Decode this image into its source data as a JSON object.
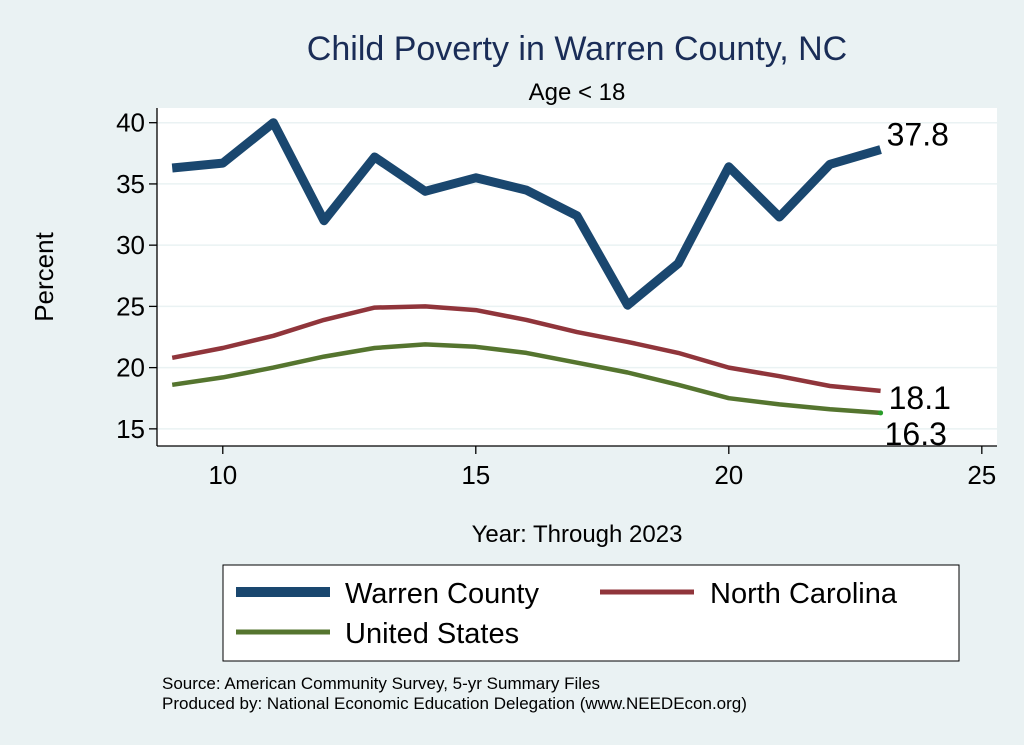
{
  "chart_data": {
    "type": "line",
    "title": "Child Poverty in Warren County, NC",
    "subtitle": "Age < 18",
    "xlabel": "Year: Through 2023",
    "ylabel": "Percent",
    "xlim": [
      8.7,
      25.3
    ],
    "ylim": [
      13.6,
      41.2
    ],
    "xticks": [
      10,
      15,
      20,
      25
    ],
    "yticks": [
      15,
      20,
      25,
      30,
      35,
      40
    ],
    "x": [
      9,
      10,
      11,
      12,
      13,
      14,
      15,
      16,
      17,
      18,
      19,
      20,
      21,
      22,
      23
    ],
    "series": [
      {
        "name": "Warren County",
        "color": "#1a476f",
        "values": [
          36.3,
          36.7,
          40.0,
          32.0,
          37.2,
          34.4,
          35.5,
          34.5,
          32.4,
          25.1,
          28.5,
          36.4,
          32.3,
          36.6,
          37.8
        ],
        "end_label": "37.8"
      },
      {
        "name": "North Carolina",
        "color": "#90353b",
        "values": [
          20.8,
          21.6,
          22.6,
          23.9,
          24.9,
          25.0,
          24.7,
          23.9,
          22.9,
          22.1,
          21.2,
          20.0,
          19.3,
          18.5,
          18.1
        ],
        "end_label": "18.1"
      },
      {
        "name": "United States",
        "color": "#55752f",
        "values": [
          18.6,
          19.2,
          20.0,
          20.9,
          21.6,
          21.9,
          21.7,
          21.2,
          20.4,
          19.6,
          18.6,
          17.5,
          17.0,
          16.6,
          16.3
        ],
        "end_label": "16.3"
      }
    ],
    "legend": {
      "position": "bottom",
      "entries": [
        "Warren County",
        "North Carolina",
        "United States"
      ]
    },
    "notes": [
      "Source: American Community Survey, 5-yr Summary Files",
      "Produced by: National Economic Education Delegation (www.NEEDEcon.org)"
    ],
    "grid": true
  },
  "colors": {
    "background": "#eaf2f3",
    "plot_background": "#ffffff",
    "title": "#1a2d57"
  }
}
